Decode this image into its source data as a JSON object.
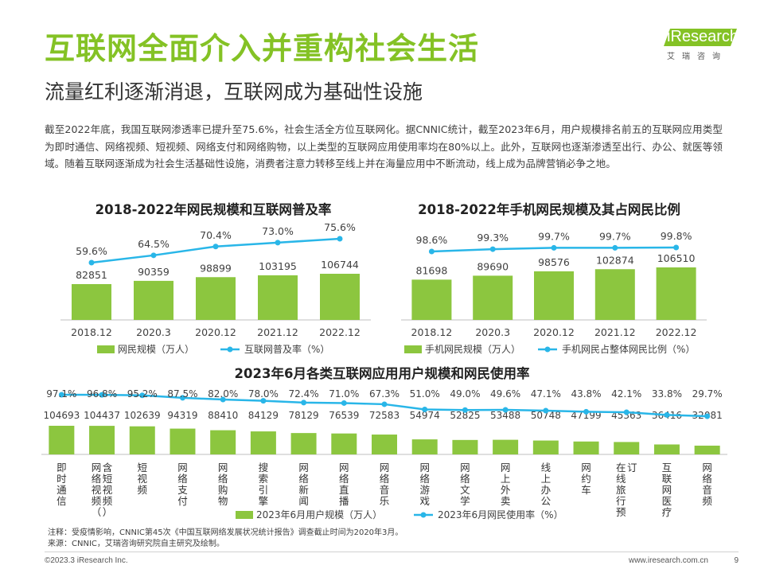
{
  "page": {
    "title": "互联网全面介入并重构社会生活",
    "subtitle": "流量红利逐渐消退，互联网成为基础性设施",
    "logo_text": "iResearch",
    "logo_sub": "艾瑞咨询",
    "paragraph": "截至2022年底，我国互联网渗透率已提升至75.6%，社会生活全方位互联网化。据CNNIC统计，截至2023年6月，用户规模排名前五的互联网应用类型为即时通信、网络视频、短视频、网络支付和网络购物，以上类型的互联网应用使用率均在80%以上。此外，互联网也逐渐渗透至出行、办公、就医等领域。随着互联网逐渐成为社会生活基础性设施，消费者注意力转移至线上并在海量应用中不断流动，线上成为品牌营销必争之地。",
    "note": "注释：受疫情影响，CNNIC第45次《中国互联网络发展状况统计报告》调查截止时间为2020年3月。",
    "source": "来源：CNNIC，艾瑞咨询研究院自主研究及绘制。",
    "copyright": "©2023.3 iResearch Inc.",
    "website": "www.iresearch.com.cn",
    "page_number": "9"
  },
  "colors": {
    "bar": "#8cc63f",
    "line": "#29b6e8",
    "title": "#84c225"
  },
  "chart_data": [
    {
      "type": "bar+line",
      "title": "2018-2022年网民规模和互联网普及率",
      "categories": [
        "2018.12",
        "2020.3",
        "2020.12",
        "2021.12",
        "2022.12"
      ],
      "series": [
        {
          "name": "网民规模（万人）",
          "type": "bar",
          "values": [
            82851,
            90359,
            98899,
            103195,
            106744
          ],
          "labels": [
            "82851",
            "90359",
            "98899",
            "103195",
            "106744"
          ]
        },
        {
          "name": "互联网普及率（%）",
          "type": "line",
          "values": [
            59.6,
            64.5,
            70.4,
            73.0,
            75.6
          ],
          "labels": [
            "59.6%",
            "64.5%",
            "70.4%",
            "73.0%",
            "75.6%"
          ]
        }
      ]
    },
    {
      "type": "bar+line",
      "title": "2018-2022年手机网民规模及其占网民比例",
      "categories": [
        "2018.12",
        "2020.3",
        "2020.12",
        "2021.12",
        "2022.12"
      ],
      "series": [
        {
          "name": "手机网民规模（万人）",
          "type": "bar",
          "values": [
            81698,
            89690,
            98576,
            102874,
            106510
          ],
          "labels": [
            "81698",
            "89690",
            "98576",
            "102874",
            "106510"
          ]
        },
        {
          "name": "手机网民占整体网民比例（%）",
          "type": "line",
          "values": [
            98.6,
            99.3,
            99.7,
            99.7,
            99.8
          ],
          "labels": [
            "98.6%",
            "99.3%",
            "99.7%",
            "99.7%",
            "99.8%"
          ]
        }
      ]
    },
    {
      "type": "bar+line",
      "title": "2023年6月各类互联网应用用户规模和网民使用率",
      "categories": [
        "即时通信",
        "网络视频（含短视频）",
        "短视频",
        "网络支付",
        "网络购物",
        "搜索引擎",
        "网络新闻",
        "网络直播",
        "网络音乐",
        "网络游戏",
        "网络文学",
        "网上外卖",
        "线上办公",
        "网约车",
        "在线旅行预订",
        "互联网医疗",
        "网络音频"
      ],
      "series": [
        {
          "name": "2023年6月用户规模（万人）",
          "type": "bar",
          "values": [
            104693,
            104437,
            102639,
            94319,
            88410,
            84129,
            78129,
            76539,
            72583,
            54974,
            52825,
            53488,
            50748,
            47199,
            45363,
            36416,
            32081
          ],
          "labels": [
            "104693",
            "104437",
            "102639",
            "94319",
            "88410",
            "84129",
            "78129",
            "76539",
            "72583",
            "54974",
            "52825",
            "53488",
            "50748",
            "47199",
            "45363",
            "36416",
            "32081"
          ]
        },
        {
          "name": "2023年6月网民使用率（%）",
          "type": "line",
          "values": [
            97.1,
            96.8,
            95.2,
            87.5,
            82.0,
            78.0,
            72.4,
            71.0,
            67.3,
            51.0,
            49.0,
            49.6,
            47.1,
            43.8,
            42.1,
            33.8,
            29.7
          ],
          "labels": [
            "97.1%",
            "96.8%",
            "95.2%",
            "87.5%",
            "82.0%",
            "78.0%",
            "72.4%",
            "71.0%",
            "67.3%",
            "51.0%",
            "49.0%",
            "49.6%",
            "47.1%",
            "43.8%",
            "42.1%",
            "33.8%",
            "29.7%"
          ]
        }
      ]
    }
  ]
}
